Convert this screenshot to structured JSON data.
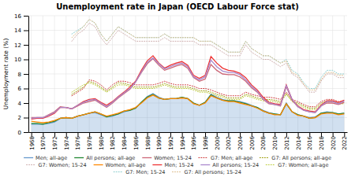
{
  "chart_data": {
    "type": "line",
    "title": "Unemployment rate in Japan (OECD Labour Force stat)",
    "y_label": "Unemployment rate (%)",
    "x": [
      1968,
      1969,
      1970,
      1971,
      1972,
      1973,
      1974,
      1975,
      1976,
      1977,
      1978,
      1979,
      1980,
      1981,
      1982,
      1983,
      1984,
      1985,
      1986,
      1987,
      1988,
      1989,
      1990,
      1991,
      1992,
      1993,
      1994,
      1995,
      1996,
      1997,
      1998,
      1999,
      2000,
      2001,
      2002,
      2003,
      2004,
      2005,
      2006,
      2007,
      2008,
      2009,
      2010,
      2011,
      2012,
      2013,
      2014,
      2015,
      2016,
      2017,
      2018,
      2019,
      2020,
      2021,
      2022
    ],
    "xlim": [
      1967.5,
      2022.5
    ],
    "xticks": [
      1968,
      1970,
      1972,
      1974,
      1976,
      1978,
      1980,
      1982,
      1984,
      1986,
      1988,
      1990,
      1992,
      1994,
      1996,
      1998,
      2000,
      2002,
      2004,
      2006,
      2008,
      2010,
      2012,
      2014,
      2016,
      2018,
      2020,
      2022
    ],
    "ylim": [
      0,
      16
    ],
    "yticks": [
      0,
      2,
      4,
      6,
      8,
      10,
      12,
      14,
      16
    ],
    "grid": true,
    "legend": "bottom",
    "series": [
      {
        "name": "Men; all-age",
        "color": "#6699cc",
        "type": "area",
        "line_style": "solid",
        "values": [
          1.1,
          1.1,
          1.1,
          1.2,
          1.4,
          1.9,
          2.0,
          1.9,
          2.2,
          2.4,
          2.6,
          2.7,
          2.4,
          2.1,
          2.2,
          2.5,
          2.8,
          3.0,
          3.3,
          4.1,
          4.9,
          5.3,
          4.8,
          4.5,
          4.6,
          4.6,
          4.8,
          4.6,
          4.0,
          3.7,
          4.1,
          5.2,
          4.8,
          4.5,
          4.3,
          4.3,
          4.2,
          4.0,
          3.7,
          3.4,
          3.0,
          2.7,
          2.5,
          2.4,
          4.0,
          2.8,
          2.4,
          2.2,
          2.0,
          2.1,
          2.6,
          2.8,
          2.7,
          2.5,
          2.6
        ]
      },
      {
        "name": "All persons; all-age",
        "color": "#228833",
        "line_style": "solid",
        "values": [
          1.2,
          1.2,
          1.1,
          1.3,
          1.5,
          1.9,
          2.0,
          1.9,
          2.2,
          2.4,
          2.6,
          2.8,
          2.5,
          2.1,
          2.3,
          2.5,
          2.9,
          3.0,
          3.3,
          4.1,
          4.8,
          5.2,
          4.7,
          4.5,
          4.6,
          4.6,
          4.8,
          4.6,
          4.0,
          3.7,
          4.1,
          5.1,
          4.7,
          4.4,
          4.3,
          4.3,
          4.1,
          3.9,
          3.6,
          3.4,
          2.9,
          2.6,
          2.5,
          2.4,
          3.9,
          2.8,
          2.4,
          2.2,
          1.9,
          2.0,
          2.6,
          2.7,
          2.7,
          2.5,
          2.6
        ]
      },
      {
        "name": "Women; 15-24",
        "color": "#cc6677",
        "line_style": "solid",
        "values": [
          2.0,
          2.0,
          2.0,
          2.4,
          2.8,
          3.5,
          3.4,
          3.2,
          3.6,
          4.0,
          4.2,
          4.4,
          3.9,
          3.4,
          4.0,
          4.7,
          5.3,
          5.9,
          6.9,
          8.2,
          9.4,
          10.1,
          9.2,
          8.5,
          8.8,
          9.1,
          9.3,
          8.8,
          7.5,
          7.0,
          7.3,
          9.3,
          8.5,
          8.0,
          7.9,
          7.9,
          7.6,
          7.0,
          6.1,
          5.5,
          4.5,
          3.9,
          3.8,
          3.6,
          6.3,
          4.4,
          3.5,
          3.0,
          2.8,
          2.7,
          3.6,
          4.0,
          4.0,
          3.8,
          4.1
        ]
      },
      {
        "name": "G7: Men; all-age",
        "color": "#cc3333",
        "line_style": "dotted",
        "values": [
          null,
          null,
          null,
          null,
          null,
          null,
          null,
          5.0,
          5.5,
          6.0,
          7.2,
          7.0,
          6.5,
          5.8,
          6.5,
          7.0,
          7.0,
          6.8,
          6.5,
          6.5,
          6.5,
          6.5,
          6.7,
          7.0,
          6.7,
          6.5,
          6.5,
          6.5,
          6.3,
          6.0,
          6.0,
          5.8,
          5.5,
          5.2,
          5.0,
          5.0,
          5.0,
          5.5,
          5.2,
          5.0,
          4.8,
          4.8,
          4.7,
          4.5,
          5.5,
          4.5,
          4.2,
          3.8,
          3.5,
          3.5,
          4.2,
          4.5,
          4.5,
          4.2,
          4.2
        ]
      },
      {
        "name": "G7: All persons; all-age",
        "color": "#999900",
        "line_style": "dotted",
        "values": [
          null,
          null,
          null,
          null,
          null,
          null,
          null,
          5.2,
          5.7,
          6.2,
          7.0,
          6.7,
          6.2,
          5.6,
          6.2,
          6.8,
          6.7,
          6.5,
          6.2,
          6.2,
          6.2,
          6.2,
          6.4,
          6.7,
          6.4,
          6.2,
          6.2,
          6.2,
          6.0,
          5.7,
          5.7,
          5.5,
          5.2,
          5.0,
          4.7,
          4.7,
          4.7,
          5.2,
          5.0,
          4.7,
          4.5,
          4.5,
          4.4,
          4.2,
          5.3,
          4.3,
          4.0,
          3.6,
          3.3,
          3.3,
          4.0,
          4.3,
          4.3,
          4.0,
          4.0
        ]
      },
      {
        "name": "G7: Women; 15-24",
        "color": "#ccaaaa",
        "line_style": "dotted",
        "values": [
          null,
          null,
          null,
          null,
          null,
          null,
          null,
          12.5,
          13.5,
          14.0,
          15.0,
          14.5,
          13.0,
          12.0,
          13.0,
          14.0,
          13.5,
          13.0,
          12.5,
          12.5,
          12.5,
          12.5,
          12.5,
          13.0,
          12.5,
          12.5,
          12.5,
          12.5,
          12.5,
          12.0,
          12.0,
          12.0,
          11.5,
          11.0,
          10.5,
          10.5,
          10.5,
          12.0,
          11.0,
          10.5,
          10.0,
          10.0,
          9.5,
          9.0,
          9.5,
          8.0,
          7.5,
          6.5,
          5.5,
          5.5,
          7.0,
          8.0,
          8.0,
          7.5,
          7.5
        ]
      },
      {
        "name": "Women; all-age",
        "color": "#ff8800",
        "line_style": "solid",
        "values": [
          1.5,
          1.4,
          1.3,
          1.4,
          1.6,
          1.9,
          2.0,
          1.9,
          2.2,
          2.4,
          2.6,
          2.8,
          2.5,
          2.2,
          2.4,
          2.6,
          2.9,
          3.1,
          3.4,
          4.0,
          4.7,
          5.1,
          4.7,
          4.5,
          4.6,
          4.6,
          4.7,
          4.6,
          3.9,
          3.7,
          4.0,
          5.0,
          4.7,
          4.4,
          4.2,
          4.2,
          4.0,
          3.8,
          3.6,
          3.3,
          2.9,
          2.6,
          2.4,
          2.4,
          3.9,
          2.8,
          2.3,
          2.2,
          1.9,
          2.0,
          2.5,
          2.6,
          2.6,
          2.4,
          2.5
        ]
      },
      {
        "name": "Men; 15-24",
        "color": "#ee3333",
        "line_style": "solid",
        "values": [
          1.8,
          1.9,
          1.9,
          2.2,
          2.6,
          3.4,
          3.4,
          3.2,
          3.7,
          4.2,
          4.5,
          4.6,
          4.1,
          3.7,
          4.2,
          4.9,
          5.5,
          6.2,
          7.0,
          8.5,
          9.8,
          10.5,
          9.5,
          8.8,
          9.2,
          9.5,
          9.7,
          9.2,
          7.8,
          7.4,
          7.8,
          10.4,
          9.5,
          8.8,
          8.5,
          8.4,
          8.1,
          7.5,
          6.5,
          5.8,
          4.8,
          4.1,
          3.9,
          3.8,
          6.5,
          4.5,
          3.6,
          3.1,
          2.9,
          2.8,
          3.7,
          4.3,
          4.3,
          4.1,
          4.4
        ]
      },
      {
        "name": "All persons; 15-24",
        "color": "#aa88cc",
        "line_style": "solid",
        "values": [
          1.9,
          2.0,
          2.0,
          2.3,
          2.7,
          3.4,
          3.4,
          3.2,
          3.7,
          4.1,
          4.4,
          4.5,
          4.0,
          3.5,
          4.1,
          4.8,
          5.4,
          6.0,
          6.9,
          8.3,
          9.6,
          10.2,
          9.4,
          8.7,
          9.0,
          9.3,
          9.5,
          9.0,
          7.6,
          7.2,
          7.6,
          9.9,
          9.0,
          8.4,
          8.2,
          8.2,
          7.9,
          7.2,
          6.3,
          5.6,
          4.6,
          4.0,
          3.8,
          3.7,
          6.4,
          4.5,
          3.5,
          3.0,
          2.8,
          2.7,
          3.6,
          4.2,
          4.2,
          3.9,
          4.3
        ]
      },
      {
        "name": "G7: Women; all-age",
        "color": "#bbcc33",
        "line_style": "dotted",
        "values": [
          null,
          null,
          null,
          null,
          null,
          null,
          null,
          5.5,
          6.0,
          6.5,
          6.8,
          6.5,
          6.0,
          5.5,
          6.0,
          6.5,
          6.5,
          6.3,
          6.0,
          6.0,
          6.0,
          6.0,
          6.2,
          6.5,
          6.2,
          6.0,
          6.0,
          6.0,
          5.8,
          5.5,
          5.5,
          5.3,
          5.0,
          4.8,
          4.5,
          4.5,
          4.5,
          5.0,
          4.8,
          4.5,
          4.3,
          4.3,
          4.2,
          4.0,
          5.2,
          4.2,
          3.8,
          3.4,
          3.1,
          3.1,
          3.8,
          4.1,
          4.2,
          3.9,
          3.9
        ]
      },
      {
        "name": "G7: Men; 15-24",
        "color": "#88cccc",
        "line_style": "dotted",
        "values": [
          null,
          null,
          null,
          null,
          null,
          null,
          null,
          13.5,
          14.0,
          14.5,
          15.5,
          15.0,
          13.5,
          12.5,
          13.5,
          14.5,
          14.0,
          13.5,
          13.0,
          13.0,
          13.0,
          13.0,
          13.0,
          13.5,
          13.0,
          13.0,
          13.0,
          13.0,
          13.0,
          12.5,
          12.5,
          12.5,
          12.0,
          11.5,
          11.0,
          11.0,
          11.0,
          12.5,
          11.5,
          11.0,
          10.5,
          10.5,
          10.0,
          9.5,
          10.0,
          8.5,
          8.0,
          6.8,
          6.0,
          6.0,
          7.5,
          8.5,
          8.5,
          8.0,
          8.0
        ]
      },
      {
        "name": "G7: All persons; 15-24",
        "color": "#ddbb88",
        "line_style": "dotted",
        "values": [
          null,
          null,
          null,
          null,
          null,
          null,
          null,
          13.0,
          13.8,
          14.5,
          15.5,
          15.0,
          13.5,
          12.5,
          13.5,
          14.5,
          14.0,
          13.5,
          13.0,
          13.0,
          13.0,
          13.0,
          13.0,
          13.5,
          13.0,
          13.0,
          13.0,
          13.0,
          13.0,
          12.5,
          12.5,
          12.5,
          12.0,
          11.5,
          11.0,
          11.0,
          11.0,
          12.5,
          11.5,
          11.0,
          10.5,
          10.5,
          10.0,
          9.5,
          9.8,
          8.2,
          7.8,
          6.6,
          5.8,
          5.8,
          7.2,
          8.2,
          8.2,
          7.8,
          7.8
        ]
      }
    ]
  }
}
